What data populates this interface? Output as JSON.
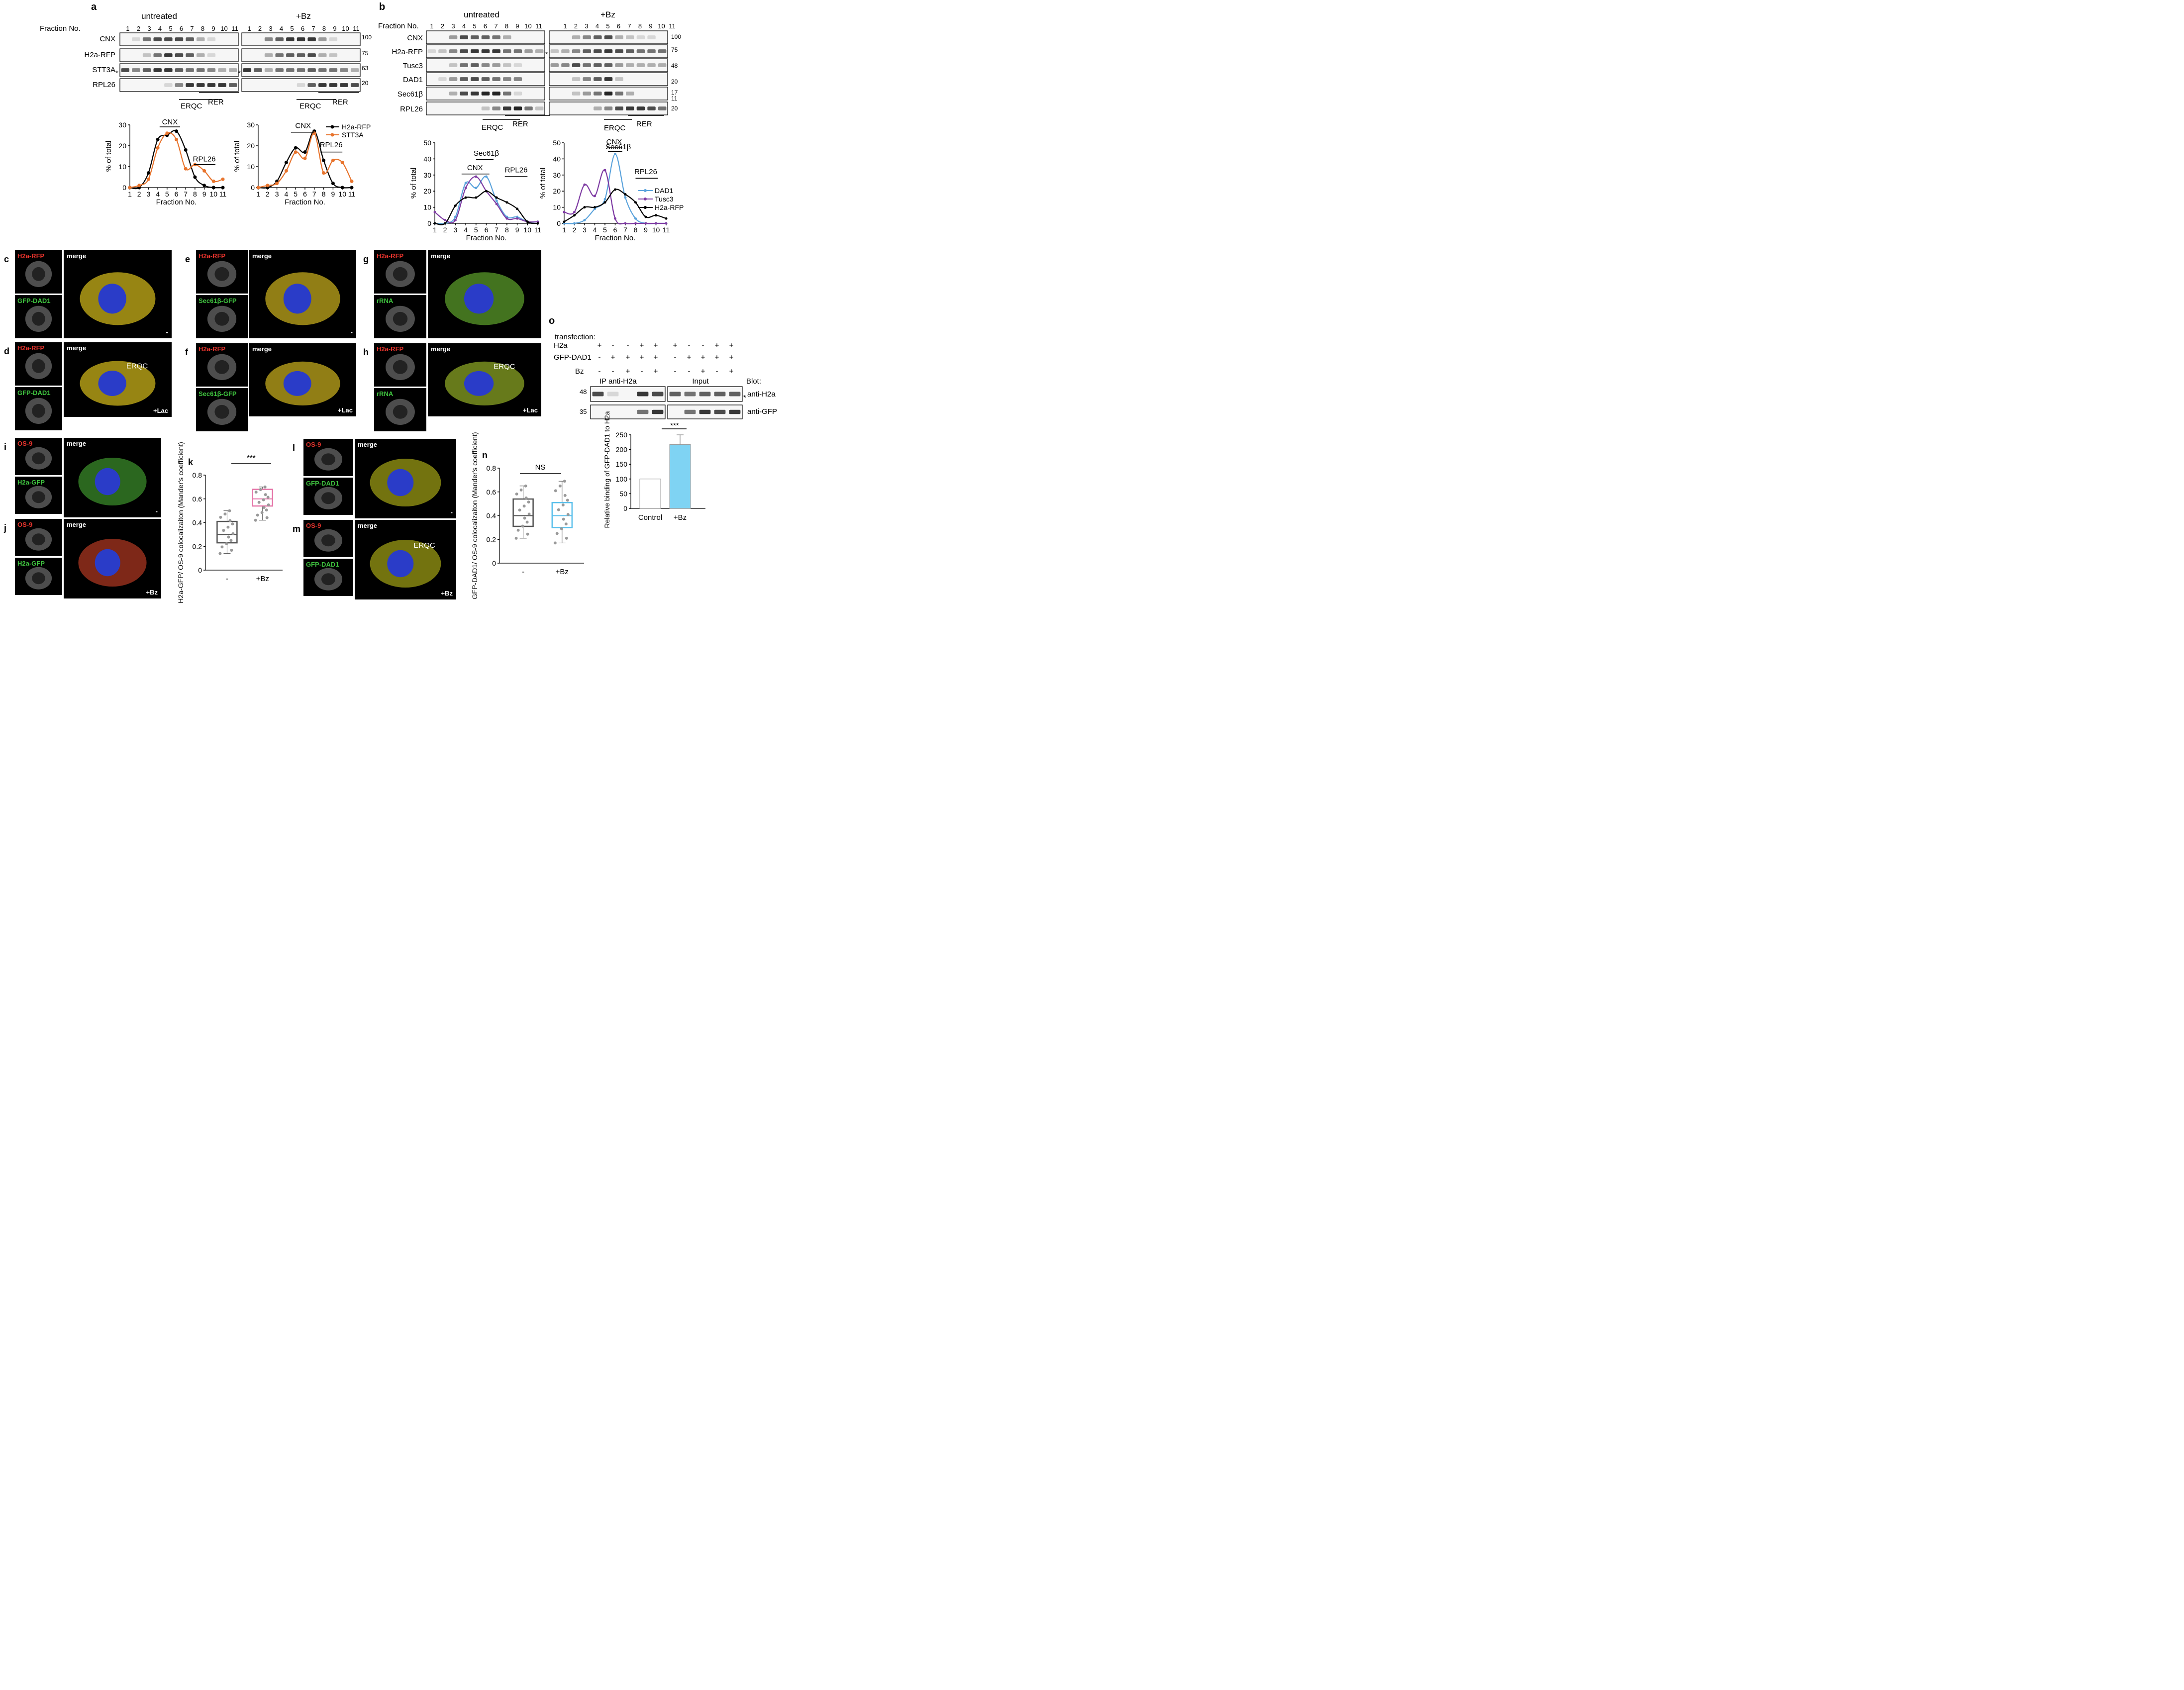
{
  "panels": {
    "a": {
      "label": "a",
      "cond1": "untreated",
      "cond2": "+Bz",
      "fraction_label": "Fraction No.",
      "fractions": [
        "1",
        "2",
        "3",
        "4",
        "5",
        "6",
        "7",
        "8",
        "9",
        "10",
        "11"
      ],
      "blots": [
        "CNX",
        "H2a-RFP",
        "STT3A",
        "RPL26"
      ],
      "mw": [
        "100",
        "75",
        "63",
        "20"
      ],
      "star": "*",
      "erqc": "ERQC",
      "rer": "RER",
      "chart_left": {
        "ylabel": "% of total",
        "xlabel": "Fraction No.",
        "cnx": "CNX",
        "rpl26": "RPL26"
      },
      "chart_right": {
        "ylabel": "% of total",
        "xlabel": "Fraction No.",
        "cnx": "CNX",
        "rpl26": "RPL26"
      }
    },
    "b": {
      "label": "b",
      "cond1": "untreated",
      "cond2": "+Bz",
      "fraction_label": "Fraction No.",
      "fractions": [
        "1",
        "2",
        "3",
        "4",
        "5",
        "6",
        "7",
        "8",
        "9",
        "10",
        "11"
      ],
      "blots": [
        "CNX",
        "H2a-RFP",
        "Tusc3",
        "DAD1",
        "Sec61β",
        "RPL26"
      ],
      "mw": [
        "100",
        "75",
        "48",
        "20",
        "17",
        "11",
        "20"
      ],
      "star": "*",
      "erqc": "ERQC",
      "rer": "RER",
      "chart_left": {
        "ylabel": "% of total",
        "xlabel": "Fraction No.",
        "cnx": "CNX",
        "sec": "Sec61β",
        "rpl26": "RPL26"
      },
      "chart_right": {
        "ylabel": "% of total",
        "xlabel": "Fraction No.",
        "cnx": "CNX",
        "sec": "Sec61β",
        "rpl26": "RPL26"
      }
    },
    "o": {
      "label": "o",
      "transfection": "transfection:",
      "rows": [
        "H2a",
        "GFP-DAD1",
        "Bz"
      ],
      "signs": [
        [
          "+",
          "-",
          "-",
          "+",
          "+",
          "+",
          "-",
          "-",
          "+",
          "+"
        ],
        [
          "-",
          "+",
          "+",
          "+",
          "+",
          "-",
          "+",
          "+",
          "+",
          "+"
        ],
        [
          "-",
          "-",
          "+",
          "-",
          "+",
          "-",
          "-",
          "+",
          "-",
          "+"
        ]
      ],
      "ip": "IP anti-H2a",
      "input": "Input",
      "blot": "Blot:",
      "anti_h2a": "anti-H2a",
      "anti_gfp": "anti-GFP",
      "mw48": "48",
      "mw35": "35",
      "star": "*",
      "bar_ylabel": "Relative binding of GFP-DAD1 to H2a",
      "sig": "***"
    }
  },
  "micro": {
    "c": {
      "label": "c",
      "top": "H2a-RFP",
      "bottom": "GFP-DAD1",
      "merge": "merge",
      "cond": "-"
    },
    "d": {
      "label": "d",
      "top": "H2a-RFP",
      "bottom": "GFP-DAD1",
      "merge": "merge",
      "cond": "+Lac",
      "erqc": "ERQC"
    },
    "e": {
      "label": "e",
      "top": "H2a-RFP",
      "bottom": "Sec61β-GFP",
      "merge": "merge",
      "cond": "-"
    },
    "f": {
      "label": "f",
      "top": "H2a-RFP",
      "bottom": "Sec61β-GFP",
      "merge": "merge",
      "cond": "+Lac"
    },
    "g": {
      "label": "g",
      "top": "H2a-RFP",
      "bottom": "rRNA",
      "merge": "merge",
      "cond": ""
    },
    "h": {
      "label": "h",
      "top": "H2a-RFP",
      "bottom": "rRNA",
      "merge": "merge",
      "cond": "+Lac",
      "erqc": "ERQC"
    },
    "i": {
      "label": "i",
      "top": "OS-9",
      "bottom": "H2a-GFP",
      "merge": "merge",
      "cond": "-"
    },
    "j": {
      "label": "j",
      "top": "OS-9",
      "bottom": "H2a-GFP",
      "merge": "merge",
      "cond": "+Bz"
    },
    "l": {
      "label": "l",
      "top": "OS-9",
      "bottom": "GFP-DAD1",
      "merge": "merge",
      "cond": "-"
    },
    "m": {
      "label": "m",
      "top": "OS-9",
      "bottom": "GFP-DAD1",
      "merge": "merge",
      "cond": "+Bz",
      "erqc": "ERQC"
    }
  },
  "box_k": {
    "label": "k",
    "ylabel": "H2a-GFP/ OS-9 colocalizaiton (Mander's coefficient)",
    "sig": "***"
  },
  "box_n": {
    "label": "n",
    "ylabel": "GFP-DAD1/ OS-9 colocalizaiton (Mander's coefficient)",
    "sig": "NS"
  },
  "chart_data": [
    {
      "type": "line",
      "panel": "a-untreated",
      "x": [
        1,
        2,
        3,
        4,
        5,
        6,
        7,
        8,
        9,
        10,
        11
      ],
      "xlim": [
        1,
        11
      ],
      "ylim": [
        0,
        30
      ],
      "yticks": [
        0,
        10,
        20,
        30
      ],
      "series": [
        {
          "name": "H2a-RFP",
          "color": "#000000",
          "values": [
            0,
            0,
            7,
            23,
            25,
            27,
            18,
            5,
            1,
            0,
            0
          ]
        },
        {
          "name": "STT3A",
          "color": "#e8742d",
          "values": [
            0,
            1,
            4,
            19,
            26,
            23,
            9,
            11,
            8,
            3,
            4
          ]
        }
      ]
    },
    {
      "type": "line",
      "panel": "a-Bz",
      "x": [
        1,
        2,
        3,
        4,
        5,
        6,
        7,
        8,
        9,
        10,
        11
      ],
      "xlim": [
        1,
        11
      ],
      "ylim": [
        0,
        30
      ],
      "yticks": [
        0,
        10,
        20,
        30
      ],
      "series": [
        {
          "name": "H2a-RFP",
          "color": "#000000",
          "values": [
            0,
            0,
            3,
            12,
            19,
            17,
            27,
            13,
            2,
            0,
            0
          ]
        },
        {
          "name": "STT3A",
          "color": "#e8742d",
          "values": [
            0,
            1,
            2,
            8,
            17,
            14,
            26,
            7,
            13,
            12,
            3
          ]
        }
      ]
    },
    {
      "type": "line",
      "panel": "b-untreated",
      "x": [
        1,
        2,
        3,
        4,
        5,
        6,
        7,
        8,
        9,
        10,
        11
      ],
      "xlim": [
        1,
        11
      ],
      "ylim": [
        0,
        50
      ],
      "yticks": [
        0,
        10,
        20,
        30,
        40,
        50
      ],
      "series": [
        {
          "name": "DAD1",
          "color": "#5ba3dc",
          "values": [
            0,
            0,
            4,
            25,
            22,
            29,
            14,
            4,
            4,
            1,
            1
          ]
        },
        {
          "name": "Tusc3",
          "color": "#7e3ba3",
          "values": [
            7,
            2,
            2,
            22,
            29,
            20,
            12,
            3,
            3,
            1,
            1
          ]
        },
        {
          "name": "H2a-RFP",
          "color": "#000000",
          "values": [
            0,
            0,
            11,
            16,
            16,
            20,
            16,
            13,
            9,
            1,
            0
          ]
        }
      ]
    },
    {
      "type": "line",
      "panel": "b-Bz",
      "x": [
        1,
        2,
        3,
        4,
        5,
        6,
        7,
        8,
        9,
        10,
        11
      ],
      "xlim": [
        1,
        11
      ],
      "ylim": [
        0,
        50
      ],
      "yticks": [
        0,
        10,
        20,
        30,
        40,
        50
      ],
      "series": [
        {
          "name": "DAD1",
          "color": "#5ba3dc",
          "values": [
            0,
            0,
            2,
            9,
            15,
            43,
            16,
            3,
            0,
            0,
            0
          ]
        },
        {
          "name": "Tusc3",
          "color": "#7e3ba3",
          "values": [
            7,
            7,
            24,
            17,
            33,
            3,
            0,
            0,
            0,
            0,
            0
          ]
        },
        {
          "name": "H2a-RFP",
          "color": "#000000",
          "values": [
            1,
            5,
            10,
            10,
            13,
            21,
            18,
            13,
            4,
            5,
            3
          ]
        }
      ]
    },
    {
      "type": "box",
      "panel": "k",
      "categories": [
        "-",
        "+Bz"
      ],
      "ylim": [
        0,
        0.8
      ],
      "yticks": [
        0,
        0.2,
        0.4,
        0.6,
        0.8
      ],
      "boxes": [
        {
          "q1": 0.23,
          "median": 0.3,
          "q3": 0.41,
          "min": 0.14,
          "max": 0.5,
          "color": "#555555"
        },
        {
          "q1": 0.54,
          "median": 0.6,
          "q3": 0.68,
          "min": 0.42,
          "max": 0.7,
          "color": "#e575a8"
        }
      ]
    },
    {
      "type": "box",
      "panel": "n",
      "categories": [
        "-",
        "+Bz"
      ],
      "ylim": [
        0,
        0.8
      ],
      "yticks": [
        0,
        0.2,
        0.4,
        0.6,
        0.8
      ],
      "boxes": [
        {
          "q1": 0.31,
          "median": 0.4,
          "q3": 0.54,
          "min": 0.21,
          "max": 0.65,
          "color": "#555555"
        },
        {
          "q1": 0.3,
          "median": 0.4,
          "q3": 0.51,
          "min": 0.17,
          "max": 0.69,
          "color": "#5bc0eb"
        }
      ]
    },
    {
      "type": "bar",
      "panel": "o",
      "categories": [
        "Control",
        "+Bz"
      ],
      "values": [
        100,
        217
      ],
      "errors": [
        0,
        33
      ],
      "ylim": [
        0,
        250
      ],
      "yticks": [
        0,
        50,
        100,
        150,
        200,
        250
      ],
      "colors": [
        "#ffffff",
        "#7fd3f3"
      ]
    }
  ]
}
